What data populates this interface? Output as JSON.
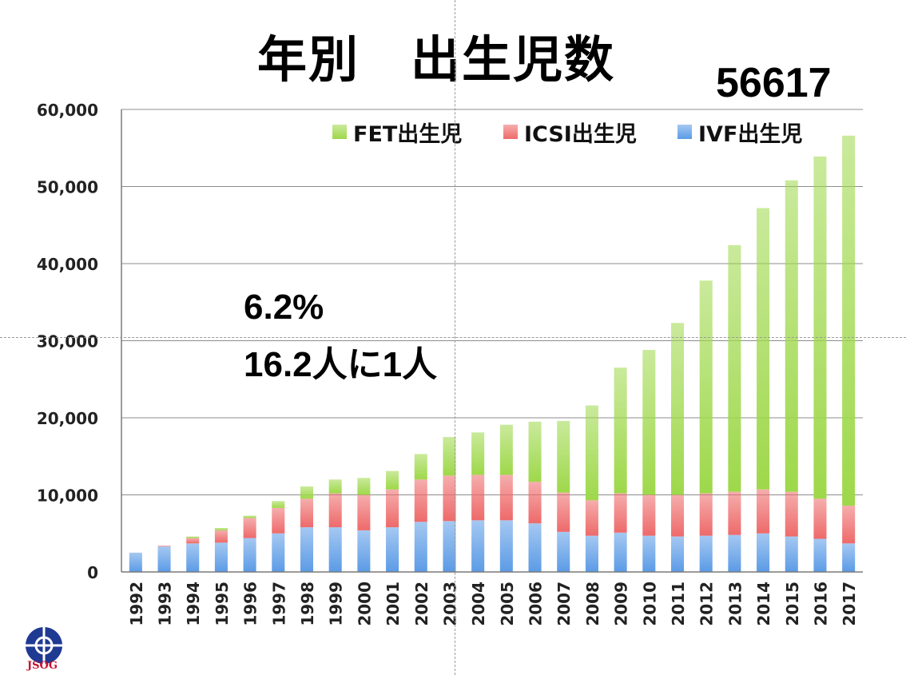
{
  "title": "年別　出生児数",
  "total_callout": "56617",
  "stat_percent": "6.2%",
  "stat_ratio": "16.2人に1人",
  "logo_text": "JSOG",
  "colors": {
    "fet": "#9ed84a",
    "icsi": "#ee6a6a",
    "ivf": "#5b9be6",
    "grid": "#8c8c8c",
    "logo": "#1f3a93"
  },
  "chart_data": {
    "type": "bar",
    "stacked": true,
    "categories": [
      "1992",
      "1993",
      "1994",
      "1995",
      "1996",
      "1997",
      "1998",
      "1999",
      "2000",
      "2001",
      "2002",
      "2003",
      "2004",
      "2005",
      "2006",
      "2007",
      "2008",
      "2009",
      "2010",
      "2011",
      "2012",
      "2013",
      "2014",
      "2015",
      "2016",
      "2017"
    ],
    "series": [
      {
        "name": "IVF出生児",
        "values": [
          2500,
          3300,
          3700,
          3800,
          4400,
          5000,
          5800,
          5800,
          5400,
          5800,
          6500,
          6600,
          6700,
          6700,
          6300,
          5200,
          4700,
          5100,
          4700,
          4600,
          4700,
          4800,
          5000,
          4600,
          4300,
          3700
        ]
      },
      {
        "name": "ICSI出生児",
        "values": [
          0,
          100,
          700,
          1600,
          2600,
          3300,
          3700,
          4400,
          4600,
          4900,
          5500,
          5900,
          5900,
          5900,
          5400,
          5100,
          4600,
          5100,
          5300,
          5400,
          5500,
          5600,
          5700,
          5800,
          5200,
          4900
        ]
      },
      {
        "name": "FET出生児",
        "values": [
          0,
          0,
          200,
          300,
          300,
          900,
          1600,
          1800,
          2200,
          2400,
          3300,
          5000,
          5500,
          6500,
          7800,
          9300,
          12300,
          16300,
          18800,
          22300,
          27600,
          32000,
          36500,
          40400,
          44400,
          48000
        ]
      }
    ],
    "ylim": [
      0,
      60000
    ],
    "yticks": [
      0,
      10000,
      20000,
      30000,
      40000,
      50000,
      60000
    ],
    "ytick_labels": [
      "0",
      "10,000",
      "20,000",
      "30,000",
      "40,000",
      "50,000",
      "60,000"
    ],
    "grid": true,
    "legend": "top-right",
    "legend_order": [
      "FET出生児",
      "ICSI出生児",
      "IVF出生児"
    ]
  }
}
